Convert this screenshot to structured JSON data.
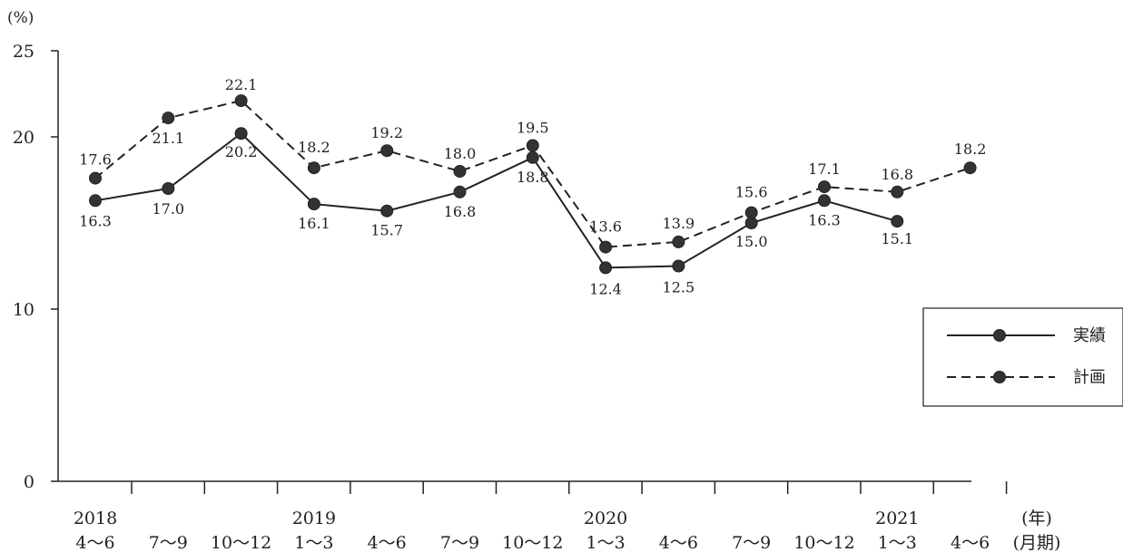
{
  "chart_data": {
    "type": "line",
    "y_unit": "(%)",
    "ylim": [
      0,
      25
    ],
    "y_ticks": [
      0,
      10,
      20,
      25
    ],
    "x_unit_year": "(年)",
    "x_unit_period": "(月期)",
    "categories": [
      {
        "year": "2018",
        "period": "4〜6"
      },
      {
        "year": "",
        "period": "7〜9"
      },
      {
        "year": "",
        "period": "10〜12"
      },
      {
        "year": "2019",
        "period": "1〜3"
      },
      {
        "year": "",
        "period": "4〜6"
      },
      {
        "year": "",
        "period": "7〜9"
      },
      {
        "year": "",
        "period": "10〜12"
      },
      {
        "year": "2020",
        "period": "1〜3"
      },
      {
        "year": "",
        "period": "4〜6"
      },
      {
        "year": "",
        "period": "7〜9"
      },
      {
        "year": "",
        "period": "10〜12"
      },
      {
        "year": "2021",
        "period": "1〜3"
      },
      {
        "year": "",
        "period": "4〜6"
      }
    ],
    "series": [
      {
        "name": "実績",
        "style": "solid",
        "values": [
          16.3,
          17.0,
          20.2,
          16.1,
          15.7,
          16.8,
          18.8,
          12.4,
          12.5,
          15.0,
          16.3,
          15.1,
          null
        ],
        "labels": [
          "16.3",
          "17.0",
          "20.2",
          "16.1",
          "15.7",
          "16.8",
          "18.8",
          "12.4",
          "12.5",
          "15.0",
          "16.3",
          "15.1",
          ""
        ]
      },
      {
        "name": "計画",
        "style": "dashed",
        "values": [
          17.6,
          21.1,
          22.1,
          18.2,
          19.2,
          18.0,
          19.5,
          13.6,
          13.9,
          15.6,
          17.1,
          16.8,
          18.2
        ],
        "labels": [
          "17.6",
          "21.1",
          "22.1",
          "18.2",
          "19.2",
          "18.0",
          "19.5",
          "13.6",
          "13.9",
          "15.6",
          "17.1",
          "16.8",
          "18.2"
        ]
      }
    ],
    "legend_position": "right",
    "grid": false
  }
}
